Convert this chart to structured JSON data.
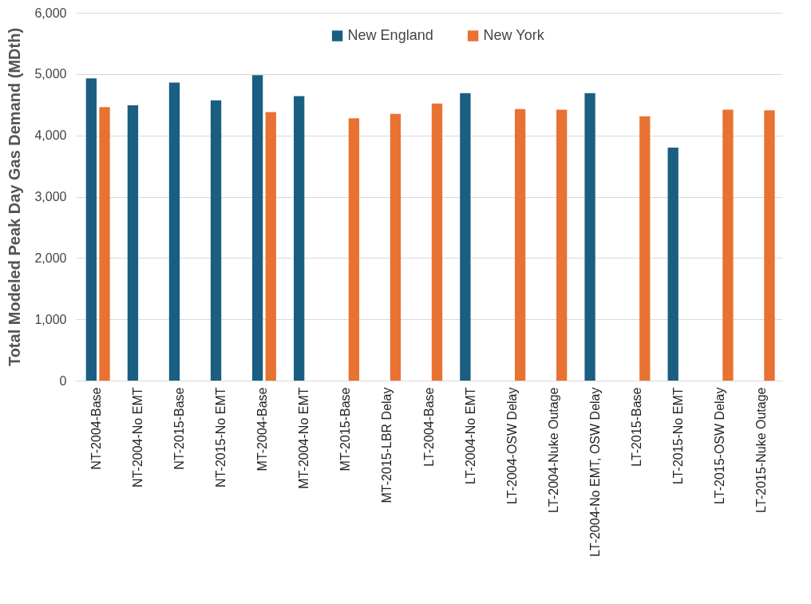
{
  "chart_data": {
    "type": "bar",
    "ylabel": "Total Modeled Peak Day Gas Demand (MDth)",
    "categories": [
      "NT-2004-Base",
      "NT-2004-No EMT",
      "NT-2015-Base",
      "NT-2015-No EMT",
      "MT-2004-Base",
      "MT-2004-No EMT",
      "MT-2015-Base",
      "MT-2015-LBR Delay",
      "LT-2004-Base",
      "LT-2004-No EMT",
      "LT-2004-OSW Delay",
      "LT-2004-Nuke Outage",
      "LT-2004-No EMT, OSW Delay",
      "LT-2015-Base",
      "LT-2015-No EMT",
      "LT-2015-OSW Delay",
      "LT-2015-Nuke Outage"
    ],
    "series": [
      {
        "name": "New England",
        "color": "#1a5e82",
        "values": [
          4930,
          4490,
          4860,
          4570,
          4980,
          4640,
          null,
          null,
          null,
          4690,
          null,
          null,
          4690,
          null,
          3800,
          null,
          null
        ]
      },
      {
        "name": "New York",
        "color": "#e97132",
        "values": [
          4460,
          null,
          null,
          null,
          4380,
          null,
          4280,
          4350,
          4520,
          null,
          4430,
          4420,
          null,
          4310,
          null,
          4420,
          4410
        ]
      }
    ],
    "ylim": [
      0,
      6000
    ],
    "yticks": [
      0,
      {
        "value": 1000,
        "label": "1,000"
      },
      {
        "value": 2000,
        "label": "2,000"
      },
      {
        "value": 3000,
        "label": "3,000"
      },
      {
        "value": 4000,
        "label": "4,000"
      },
      {
        "value": 5000,
        "label": "5,000"
      },
      {
        "value": 6000,
        "label": "6,000"
      }
    ],
    "grid": "y",
    "legend": "top"
  }
}
